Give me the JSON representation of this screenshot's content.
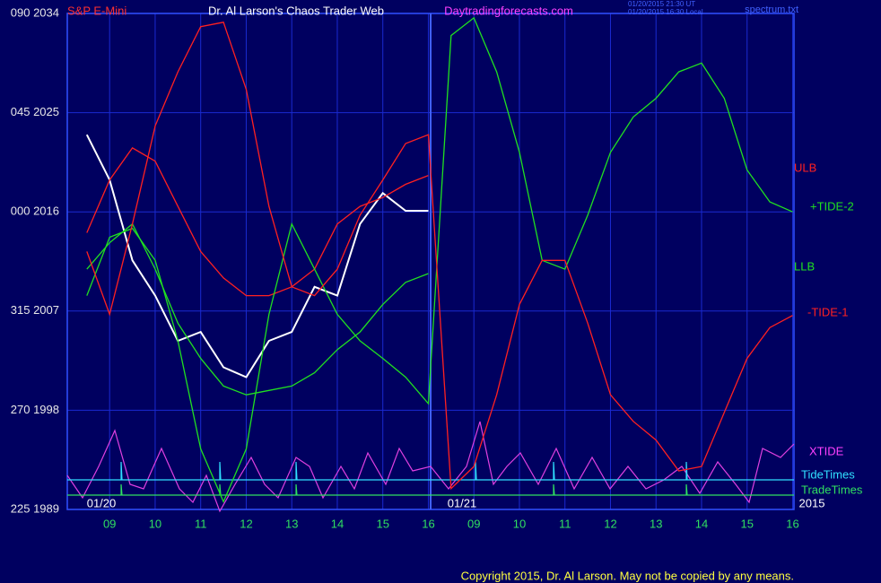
{
  "chart_data": {
    "type": "line",
    "title": "Dr. Al Larson's Chaos Trader Web",
    "subtitle": "S&P E-Mini",
    "website": "Daytradingforecasts.com",
    "timestamps": [
      "01/20/2015 21:30 UT",
      "01/20/2015 16:30 Local"
    ],
    "file": "spectrum.txt",
    "copyright": "Copyright 2015, Dr. Al Larson. May not be copied by any means.",
    "date_labels": [
      "01/20",
      "01/21",
      "2015"
    ],
    "indicator_labels": [
      "XTIDE",
      "TideTimes",
      "TradeTimes"
    ],
    "x": [
      0.5,
      1,
      1.5,
      2,
      2.5,
      3,
      3.5,
      4,
      4.5,
      5,
      5.5,
      6,
      6.5,
      7,
      7.5,
      8,
      8.5,
      9,
      9.5,
      10,
      10.5,
      11,
      11.5,
      12,
      12.5,
      13,
      13.5,
      14,
      14.5,
      15,
      15.5,
      16
    ],
    "xlim": [
      0.07,
      16.03
    ],
    "xticks": [
      {
        "value": 1,
        "label": "09"
      },
      {
        "value": 2,
        "label": "10"
      },
      {
        "value": 3,
        "label": "11"
      },
      {
        "value": 4,
        "label": "12"
      },
      {
        "value": 5,
        "label": "13"
      },
      {
        "value": 6,
        "label": "14"
      },
      {
        "value": 7,
        "label": "15"
      },
      {
        "value": 8,
        "label": "16"
      },
      {
        "value": 9,
        "label": "09"
      },
      {
        "value": 10,
        "label": "10"
      },
      {
        "value": 11,
        "label": "11"
      },
      {
        "value": 12,
        "label": "12"
      },
      {
        "value": 13,
        "label": "13"
      },
      {
        "value": 14,
        "label": "14"
      },
      {
        "value": 15,
        "label": "15"
      },
      {
        "value": 16,
        "label": "16"
      }
    ],
    "ylim": [
      1989,
      2034
    ],
    "yticks": [
      {
        "value": 2034,
        "label": "090 2034"
      },
      {
        "value": 2025,
        "label": "045 2025"
      },
      {
        "value": 2016,
        "label": "000 2016"
      },
      {
        "value": 2007,
        "label": "315 2007"
      },
      {
        "value": 1998,
        "label": "270 1998"
      },
      {
        "value": 1989,
        "label": "225 1989"
      }
    ],
    "grid": true,
    "series": [
      {
        "color": "#ffffff",
        "values": [
          2023.0,
          2018.9,
          2011.6,
          2008.4,
          2004.3,
          2005.1,
          2001.9,
          2001.0,
          2004.3,
          2005.1,
          2009.2,
          2008.4,
          2014.9,
          2017.7,
          2016.1,
          2016.1,
          null,
          null,
          null,
          null,
          null,
          null,
          null,
          null,
          null,
          null,
          null,
          null,
          null,
          null,
          null,
          null
        ]
      },
      {
        "name": "ULB",
        "color": "#ff2020",
        "values": [
          2014.1,
          2018.9,
          2021.8,
          2020.6,
          2016.5,
          2012.4,
          2010.0,
          2008.4,
          2008.4,
          2009.2,
          2010.8,
          2014.9,
          2016.5,
          2017.3,
          2018.5,
          2019.3,
          null,
          null,
          null,
          null,
          null,
          null,
          null,
          null,
          null,
          null,
          null,
          null,
          null,
          null,
          null,
          null
        ]
      },
      {
        "name": "+TIDE-2",
        "color": "#20e020",
        "values": [
          2008.4,
          2013.7,
          2014.5,
          2011.6,
          2004.3,
          1994.5,
          1989.7,
          1994.5,
          2006.7,
          2014.9,
          2010.8,
          2006.7,
          2004.3,
          2002.7,
          2001.0,
          1998.6,
          2032.0,
          2033.6,
          2028.7,
          2021.4,
          2011.6,
          2010.8,
          2015.7,
          2021.4,
          2024.6,
          2026.3,
          2028.7,
          2029.5,
          2026.3,
          2019.8,
          2016.9,
          2016.0
        ]
      },
      {
        "name": "LLB",
        "color": "#20e020",
        "values": [
          2010.8,
          2013.2,
          2014.9,
          2010.8,
          2005.9,
          2002.7,
          2000.2,
          1999.4,
          1999.8,
          2000.2,
          2001.4,
          2003.5,
          2005.1,
          2007.6,
          2009.6,
          2010.4,
          null,
          null,
          null,
          null,
          null,
          null,
          null,
          null,
          null,
          null,
          null,
          null,
          null,
          null,
          null,
          null
        ]
      },
      {
        "name": "-TIDE-1",
        "color": "#ff2020",
        "values": [
          2012.4,
          2006.7,
          2014.9,
          2023.8,
          2028.7,
          2032.8,
          2033.2,
          2027.1,
          2016.5,
          2009.2,
          2008.4,
          2010.8,
          2015.7,
          2018.9,
          2022.2,
          2023.0,
          1990.9,
          1992.9,
          1999.4,
          2007.6,
          2011.6,
          2011.6,
          2005.9,
          1999.4,
          1997.0,
          1995.3,
          1992.5,
          1992.9,
          1997.8,
          2002.7,
          2005.5,
          2006.6
        ]
      }
    ]
  }
}
